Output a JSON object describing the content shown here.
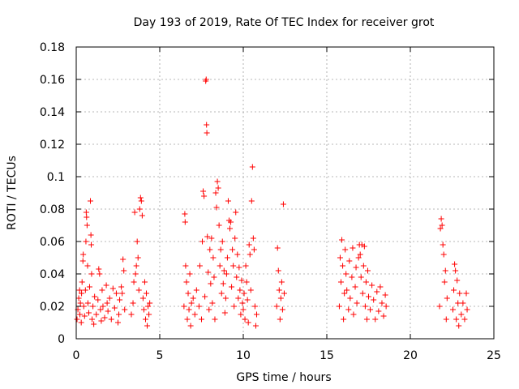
{
  "chart_data": {
    "type": "scatter",
    "title": "Day 193 of 2019, Rate Of TEC Index for receiver grot",
    "xlabel": "GPS time / hours",
    "ylabel": "ROTI / TECUs",
    "xlim": [
      0,
      25
    ],
    "ylim": [
      0,
      0.18
    ],
    "xticks": [
      0,
      5,
      10,
      15,
      20,
      25
    ],
    "xtick_labels": [
      "0",
      "5",
      "10",
      "15",
      "20",
      "25"
    ],
    "yticks": [
      0,
      0.02,
      0.04,
      0.06,
      0.08,
      0.1,
      0.12,
      0.14,
      0.16,
      0.18
    ],
    "ytick_labels": [
      "0",
      "0.02",
      "0.04",
      "0.06",
      "0.08",
      "0.1",
      "0.12",
      "0.14",
      "0.16",
      "0.18"
    ],
    "grid": true,
    "marker": "+",
    "color": "#ff0000",
    "series": [
      {
        "points": [
          [
            0.05,
            0.012
          ],
          [
            0.1,
            0.018
          ],
          [
            0.15,
            0.025
          ],
          [
            0.2,
            0.03
          ],
          [
            0.22,
            0.015
          ],
          [
            0.25,
            0.022
          ],
          [
            0.3,
            0.01
          ],
          [
            0.32,
            0.028
          ],
          [
            0.35,
            0.035
          ],
          [
            0.4,
            0.048
          ],
          [
            0.42,
            0.052
          ],
          [
            0.45,
            0.02
          ],
          [
            0.5,
            0.014
          ],
          [
            0.55,
            0.03
          ],
          [
            0.58,
            0.06
          ],
          [
            0.6,
            0.078
          ],
          [
            0.62,
            0.075
          ],
          [
            0.65,
            0.07
          ],
          [
            0.68,
            0.045
          ],
          [
            0.7,
            0.022
          ],
          [
            0.75,
            0.016
          ],
          [
            0.8,
            0.032
          ],
          [
            0.85,
            0.085
          ],
          [
            0.88,
            0.064
          ],
          [
            0.9,
            0.058
          ],
          [
            0.92,
            0.04
          ],
          [
            0.95,
            0.012
          ],
          [
            1.0,
            0.02
          ],
          [
            1.05,
            0.009
          ],
          [
            1.1,
            0.026
          ],
          [
            1.2,
            0.015
          ],
          [
            1.3,
            0.024
          ],
          [
            1.35,
            0.043
          ],
          [
            1.4,
            0.04
          ],
          [
            1.45,
            0.018
          ],
          [
            1.5,
            0.011
          ],
          [
            1.55,
            0.03
          ],
          [
            1.6,
            0.02
          ],
          [
            1.7,
            0.013
          ],
          [
            1.8,
            0.033
          ],
          [
            1.85,
            0.022
          ],
          [
            1.9,
            0.017
          ],
          [
            2.0,
            0.025
          ],
          [
            2.1,
            0.012
          ],
          [
            2.2,
            0.031
          ],
          [
            2.3,
            0.019
          ],
          [
            2.4,
            0.028
          ],
          [
            2.5,
            0.01
          ],
          [
            2.55,
            0.015
          ],
          [
            2.6,
            0.024
          ],
          [
            2.7,
            0.032
          ],
          [
            2.75,
            0.028
          ],
          [
            2.8,
            0.049
          ],
          [
            2.85,
            0.042
          ],
          [
            2.9,
            0.018
          ],
          [
            3.3,
            0.015
          ],
          [
            3.4,
            0.022
          ],
          [
            3.45,
            0.035
          ],
          [
            3.5,
            0.078
          ],
          [
            3.55,
            0.04
          ],
          [
            3.6,
            0.045
          ],
          [
            3.65,
            0.06
          ],
          [
            3.7,
            0.05
          ],
          [
            3.75,
            0.03
          ],
          [
            3.8,
            0.08
          ],
          [
            3.85,
            0.087
          ],
          [
            3.9,
            0.085
          ],
          [
            3.95,
            0.076
          ],
          [
            4.0,
            0.025
          ],
          [
            4.05,
            0.018
          ],
          [
            4.1,
            0.035
          ],
          [
            4.15,
            0.012
          ],
          [
            4.2,
            0.028
          ],
          [
            4.25,
            0.008
          ],
          [
            4.3,
            0.02
          ],
          [
            4.35,
            0.015
          ],
          [
            4.4,
            0.022
          ],
          [
            6.45,
            0.02
          ],
          [
            6.5,
            0.077
          ],
          [
            6.52,
            0.072
          ],
          [
            6.55,
            0.045
          ],
          [
            6.6,
            0.035
          ],
          [
            6.65,
            0.012
          ],
          [
            6.7,
            0.028
          ],
          [
            6.75,
            0.018
          ],
          [
            6.8,
            0.04
          ],
          [
            6.85,
            0.008
          ],
          [
            6.9,
            0.022
          ],
          [
            7.0,
            0.025
          ],
          [
            7.1,
            0.015
          ],
          [
            7.2,
            0.03
          ],
          [
            7.35,
            0.02
          ],
          [
            7.4,
            0.045
          ],
          [
            7.5,
            0.012
          ],
          [
            7.55,
            0.06
          ],
          [
            7.6,
            0.091
          ],
          [
            7.65,
            0.088
          ],
          [
            7.7,
            0.026
          ],
          [
            7.75,
            0.159
          ],
          [
            7.78,
            0.16
          ],
          [
            7.8,
            0.132
          ],
          [
            7.82,
            0.127
          ],
          [
            7.85,
            0.063
          ],
          [
            7.9,
            0.041
          ],
          [
            7.95,
            0.018
          ],
          [
            8.0,
            0.055
          ],
          [
            8.05,
            0.034
          ],
          [
            8.1,
            0.062
          ],
          [
            8.15,
            0.022
          ],
          [
            8.2,
            0.05
          ],
          [
            8.25,
            0.038
          ],
          [
            8.3,
            0.012
          ],
          [
            8.35,
            0.09
          ],
          [
            8.4,
            0.081
          ],
          [
            8.45,
            0.097
          ],
          [
            8.5,
            0.093
          ],
          [
            8.55,
            0.07
          ],
          [
            8.6,
            0.045
          ],
          [
            8.65,
            0.055
          ],
          [
            8.7,
            0.028
          ],
          [
            8.75,
            0.06
          ],
          [
            8.8,
            0.034
          ],
          [
            8.85,
            0.042
          ],
          [
            8.9,
            0.016
          ],
          [
            8.95,
            0.025
          ],
          [
            9.0,
            0.04
          ],
          [
            9.05,
            0.05
          ],
          [
            9.1,
            0.085
          ],
          [
            9.15,
            0.073
          ],
          [
            9.2,
            0.068
          ],
          [
            9.25,
            0.072
          ],
          [
            9.3,
            0.032
          ],
          [
            9.35,
            0.055
          ],
          [
            9.4,
            0.045
          ],
          [
            9.45,
            0.02
          ],
          [
            9.5,
            0.062
          ],
          [
            9.55,
            0.078
          ],
          [
            9.6,
            0.038
          ],
          [
            9.65,
            0.052
          ],
          [
            9.7,
            0.025
          ],
          [
            9.75,
            0.044
          ],
          [
            9.8,
            0.03
          ],
          [
            9.85,
            0.015
          ],
          [
            9.9,
            0.036
          ],
          [
            9.95,
            0.022
          ],
          [
            10.0,
            0.018
          ],
          [
            10.05,
            0.028
          ],
          [
            10.1,
            0.012
          ],
          [
            10.15,
            0.045
          ],
          [
            10.2,
            0.035
          ],
          [
            10.25,
            0.024
          ],
          [
            10.3,
            0.01
          ],
          [
            10.35,
            0.058
          ],
          [
            10.4,
            0.052
          ],
          [
            10.45,
            0.03
          ],
          [
            10.5,
            0.085
          ],
          [
            10.55,
            0.106
          ],
          [
            10.6,
            0.062
          ],
          [
            10.65,
            0.055
          ],
          [
            10.7,
            0.02
          ],
          [
            10.75,
            0.008
          ],
          [
            10.8,
            0.015
          ],
          [
            12.0,
            0.02
          ],
          [
            12.05,
            0.056
          ],
          [
            12.1,
            0.042
          ],
          [
            12.15,
            0.03
          ],
          [
            12.2,
            0.012
          ],
          [
            12.25,
            0.025
          ],
          [
            12.3,
            0.035
          ],
          [
            12.35,
            0.018
          ],
          [
            12.4,
            0.083
          ],
          [
            12.45,
            0.028
          ],
          [
            15.75,
            0.02
          ],
          [
            15.8,
            0.05
          ],
          [
            15.85,
            0.035
          ],
          [
            15.9,
            0.061
          ],
          [
            15.95,
            0.045
          ],
          [
            16.0,
            0.012
          ],
          [
            16.05,
            0.028
          ],
          [
            16.1,
            0.055
          ],
          [
            16.15,
            0.04
          ],
          [
            16.2,
            0.03
          ],
          [
            16.3,
            0.018
          ],
          [
            16.35,
            0.048
          ],
          [
            16.4,
            0.025
          ],
          [
            16.5,
            0.038
          ],
          [
            16.55,
            0.056
          ],
          [
            16.6,
            0.015
          ],
          [
            16.7,
            0.032
          ],
          [
            16.75,
            0.044
          ],
          [
            16.8,
            0.022
          ],
          [
            16.9,
            0.05
          ],
          [
            16.95,
            0.058
          ],
          [
            17.0,
            0.052
          ],
          [
            17.05,
            0.038
          ],
          [
            17.1,
            0.058
          ],
          [
            17.15,
            0.028
          ],
          [
            17.2,
            0.045
          ],
          [
            17.25,
            0.057
          ],
          [
            17.3,
            0.02
          ],
          [
            17.35,
            0.035
          ],
          [
            17.4,
            0.012
          ],
          [
            17.45,
            0.042
          ],
          [
            17.5,
            0.026
          ],
          [
            17.6,
            0.018
          ],
          [
            17.7,
            0.033
          ],
          [
            17.8,
            0.024
          ],
          [
            17.9,
            0.012
          ],
          [
            18.0,
            0.029
          ],
          [
            18.1,
            0.017
          ],
          [
            18.2,
            0.032
          ],
          [
            18.3,
            0.022
          ],
          [
            18.4,
            0.014
          ],
          [
            18.5,
            0.027
          ],
          [
            18.55,
            0.02
          ],
          [
            21.75,
            0.02
          ],
          [
            21.8,
            0.068
          ],
          [
            21.85,
            0.074
          ],
          [
            21.9,
            0.07
          ],
          [
            21.95,
            0.058
          ],
          [
            22.0,
            0.052
          ],
          [
            22.05,
            0.035
          ],
          [
            22.1,
            0.042
          ],
          [
            22.15,
            0.012
          ],
          [
            22.2,
            0.025
          ],
          [
            22.55,
            0.018
          ],
          [
            22.6,
            0.03
          ],
          [
            22.65,
            0.046
          ],
          [
            22.7,
            0.042
          ],
          [
            22.75,
            0.012
          ],
          [
            22.8,
            0.036
          ],
          [
            22.85,
            0.022
          ],
          [
            22.9,
            0.008
          ],
          [
            22.95,
            0.028
          ],
          [
            23.05,
            0.015
          ],
          [
            23.15,
            0.022
          ],
          [
            23.25,
            0.012
          ],
          [
            23.35,
            0.028
          ],
          [
            23.4,
            0.018
          ]
        ]
      }
    ]
  }
}
